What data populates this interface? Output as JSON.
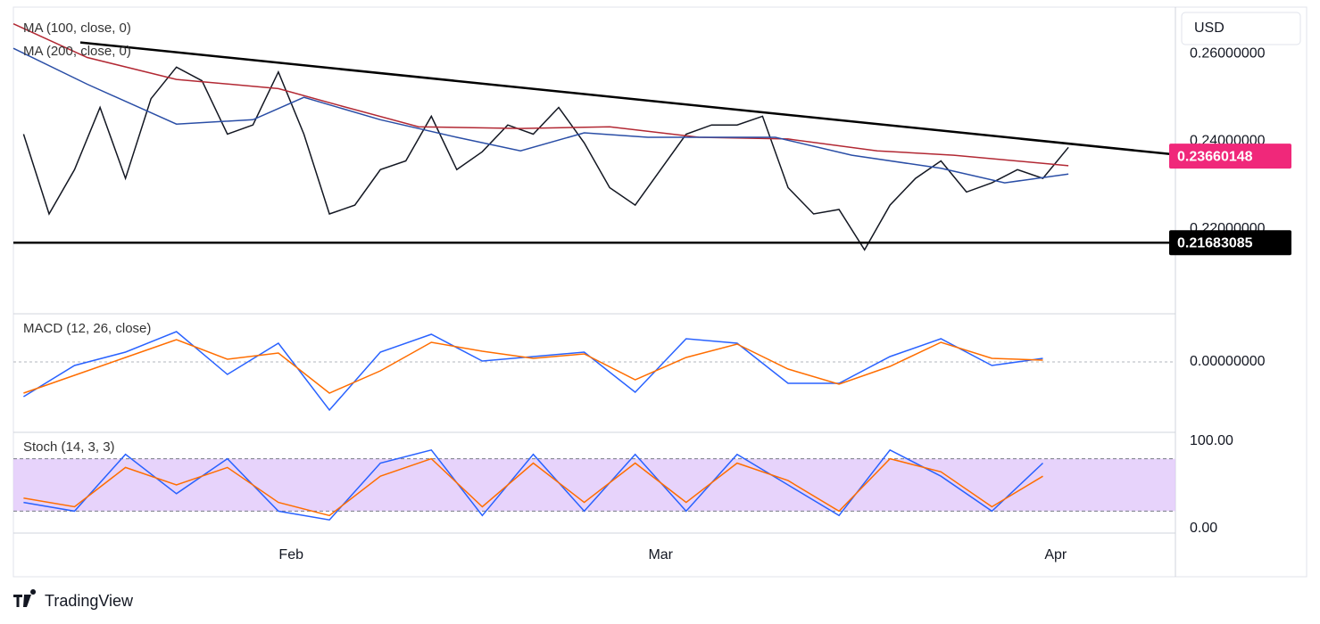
{
  "currency": "USD",
  "brand": "TradingView",
  "chart_data": [
    {
      "type": "line",
      "xlim": [
        9.2,
        100.4
      ],
      "xticks": [
        {
          "value": 31,
          "label": "Feb"
        },
        {
          "value": 60,
          "label": "Mar"
        },
        {
          "value": 91,
          "label": "Apr"
        }
      ],
      "ylim": [
        0.2006,
        0.2706
      ],
      "yticks": [
        {
          "value": 0.22,
          "label": "0.22000000"
        },
        {
          "value": 0.24,
          "label": "0.24000000"
        },
        {
          "value": 0.26,
          "label": "0.26000000"
        }
      ],
      "series": [
        {
          "color": "#131722",
          "x": [
            10,
            12,
            14,
            16,
            18,
            20,
            22,
            24,
            26,
            28,
            30,
            32,
            34,
            36,
            38,
            40,
            42,
            44,
            46,
            48,
            50,
            52,
            54,
            56,
            58,
            60,
            62,
            64,
            66,
            68,
            70,
            72,
            74,
            76,
            78,
            80,
            82,
            84,
            86,
            88,
            90,
            92
          ],
          "values": [
            0.2416,
            0.2234,
            0.2335,
            0.2477,
            0.2315,
            0.2497,
            0.2569,
            0.2538,
            0.2416,
            0.2437,
            0.2558,
            0.2416,
            0.2234,
            0.2254,
            0.2335,
            0.2355,
            0.2457,
            0.2335,
            0.2376,
            0.2437,
            0.2416,
            0.2477,
            0.2396,
            0.2294,
            0.2254,
            0.2335,
            0.2416,
            0.2437,
            0.2437,
            0.2457,
            0.2294,
            0.2234,
            0.2244,
            0.2152,
            0.2254,
            0.2315,
            0.2355,
            0.2284,
            0.2305,
            0.2335,
            0.2315,
            0.2386
          ]
        },
        {
          "name": "MA (100, close, 0)",
          "color": "#b22833",
          "x": [
            9.2,
            15,
            22,
            30,
            35,
            41,
            49,
            56,
            63,
            70,
            77,
            83,
            92
          ],
          "values": [
            0.2668,
            0.2591,
            0.2541,
            0.252,
            0.248,
            0.2433,
            0.2429,
            0.2433,
            0.2409,
            0.2405,
            0.2378,
            0.2368,
            0.2344
          ]
        },
        {
          "name": "MA (200, close, 0)",
          "color": "#2a4ea6",
          "x": [
            9.2,
            15,
            22,
            28,
            32,
            38,
            44,
            49,
            54,
            59,
            69,
            75,
            82,
            87,
            92
          ],
          "values": [
            0.2612,
            0.253,
            0.2439,
            0.2449,
            0.25,
            0.2449,
            0.2409,
            0.2378,
            0.2419,
            0.2409,
            0.2409,
            0.2368,
            0.2338,
            0.2305,
            0.2325
          ]
        }
      ],
      "trendline": {
        "x": [
          14.45,
          100.4
        ],
        "values": [
          0.26254,
          0.23695
        ],
        "color": "#000000"
      },
      "price_labels": [
        {
          "value": 0.23660148,
          "label": "0.23660148",
          "color": "#f0287a"
        },
        {
          "value": 0.21683085,
          "label": "0.21683085",
          "color": "#000000"
        }
      ]
    },
    {
      "type": "line",
      "title": "MACD (12, 26, close)",
      "ylim": [
        -0.0079,
        0.0053
      ],
      "yticks": [
        {
          "value": 0,
          "label": "0.00000000"
        }
      ],
      "series": [
        {
          "color": "#2962ff",
          "x": [
            10,
            14,
            18,
            22,
            26,
            30,
            34,
            38,
            42,
            46,
            50,
            54,
            58,
            62,
            66,
            70,
            74,
            78,
            82,
            86,
            90
          ],
          "values": [
            -0.0039,
            -0.0004,
            0.0011,
            0.0034,
            -0.0014,
            0.0021,
            -0.0054,
            0.0011,
            0.0031,
            0.0001,
            0.0006,
            0.0011,
            -0.0034,
            0.0026,
            0.0021,
            -0.0024,
            -0.0024,
            0.0006,
            0.0026,
            -0.0004,
            0.0004
          ]
        },
        {
          "color": "#ff6d00",
          "x": [
            10,
            14,
            18,
            22,
            26,
            30,
            34,
            38,
            42,
            46,
            50,
            54,
            58,
            62,
            66,
            70,
            74,
            78,
            82,
            86,
            90
          ],
          "values": [
            -0.0035,
            -0.0015,
            0.0005,
            0.0025,
            0.0003,
            0.001,
            -0.0035,
            -0.001,
            0.0022,
            0.0012,
            0.0004,
            0.0009,
            -0.002,
            0.0005,
            0.002,
            -0.0008,
            -0.0025,
            -0.0005,
            0.0022,
            0.0004,
            0.0002
          ]
        }
      ]
    },
    {
      "type": "line",
      "title": "Stoch (14, 3, 3)",
      "ylim": [
        -5.1,
        109.2
      ],
      "band": [
        20,
        80
      ],
      "yticks": [
        {
          "value": 100,
          "label": "100.00"
        },
        {
          "value": 0,
          "label": "0.00"
        }
      ],
      "series": [
        {
          "color": "#2962ff",
          "x": [
            10,
            14,
            18,
            22,
            26,
            30,
            34,
            38,
            42,
            46,
            50,
            54,
            58,
            62,
            66,
            70,
            74,
            78,
            82,
            86,
            90
          ],
          "values": [
            30,
            20,
            85,
            40,
            80,
            20,
            10,
            75,
            90,
            15,
            85,
            20,
            85,
            20,
            85,
            50,
            15,
            90,
            60,
            20,
            75
          ]
        },
        {
          "color": "#ff6d00",
          "x": [
            10,
            14,
            18,
            22,
            26,
            30,
            34,
            38,
            42,
            46,
            50,
            54,
            58,
            62,
            66,
            70,
            74,
            78,
            82,
            86,
            90
          ],
          "values": [
            35,
            25,
            70,
            50,
            70,
            30,
            15,
            60,
            80,
            25,
            75,
            30,
            75,
            30,
            75,
            55,
            20,
            80,
            65,
            25,
            60
          ]
        }
      ]
    }
  ]
}
